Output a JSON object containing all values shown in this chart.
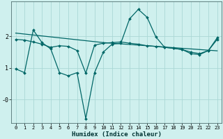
{
  "xlabel": "Humidex (Indice chaleur)",
  "bg_color": "#cff0ee",
  "line_color": "#006666",
  "grid_color": "#aad8d5",
  "x_ticks": [
    0,
    1,
    2,
    3,
    4,
    5,
    6,
    7,
    8,
    9,
    10,
    11,
    12,
    13,
    14,
    15,
    16,
    17,
    18,
    19,
    20,
    21,
    22,
    23
  ],
  "y_ticks": [
    0,
    1,
    2
  ],
  "y_tick_labels": [
    "-0",
    "1",
    "2"
  ],
  "ylim": [
    -0.75,
    3.1
  ],
  "xlim": [
    -0.5,
    23.5
  ],
  "series1_x": [
    0,
    1,
    2,
    3,
    4,
    5,
    6,
    7,
    8,
    9,
    10,
    11,
    12,
    13,
    14,
    15,
    16,
    17,
    18,
    19,
    20,
    21,
    22,
    23
  ],
  "series1_y": [
    0.97,
    0.85,
    2.2,
    1.8,
    1.6,
    0.85,
    0.75,
    0.85,
    -0.6,
    0.85,
    1.5,
    1.75,
    1.78,
    2.55,
    2.85,
    2.6,
    1.98,
    1.65,
    1.62,
    1.58,
    1.45,
    1.42,
    1.55,
    1.95
  ],
  "series2_x": [
    0,
    1,
    2,
    3,
    4,
    5,
    6,
    7,
    8,
    9,
    10,
    11,
    12,
    13,
    14,
    15,
    16,
    17,
    18,
    19,
    20,
    21,
    22,
    23
  ],
  "series2_y": [
    2.1,
    2.07,
    2.04,
    2.01,
    1.98,
    1.95,
    1.92,
    1.89,
    1.86,
    1.83,
    1.8,
    1.78,
    1.76,
    1.74,
    1.72,
    1.7,
    1.68,
    1.66,
    1.64,
    1.62,
    1.6,
    1.58,
    1.56,
    1.54
  ],
  "series3_x": [
    0,
    1,
    2,
    3,
    4,
    5,
    6,
    7,
    8,
    9,
    10,
    11,
    12,
    13,
    14,
    15,
    16,
    17,
    18,
    19,
    20,
    21,
    22,
    23
  ],
  "series3_y": [
    1.9,
    1.88,
    1.82,
    1.75,
    1.65,
    1.7,
    1.68,
    1.55,
    0.83,
    1.72,
    1.78,
    1.8,
    1.82,
    1.78,
    1.75,
    1.7,
    1.68,
    1.65,
    1.62,
    1.58,
    1.5,
    1.45,
    1.55,
    1.9
  ]
}
